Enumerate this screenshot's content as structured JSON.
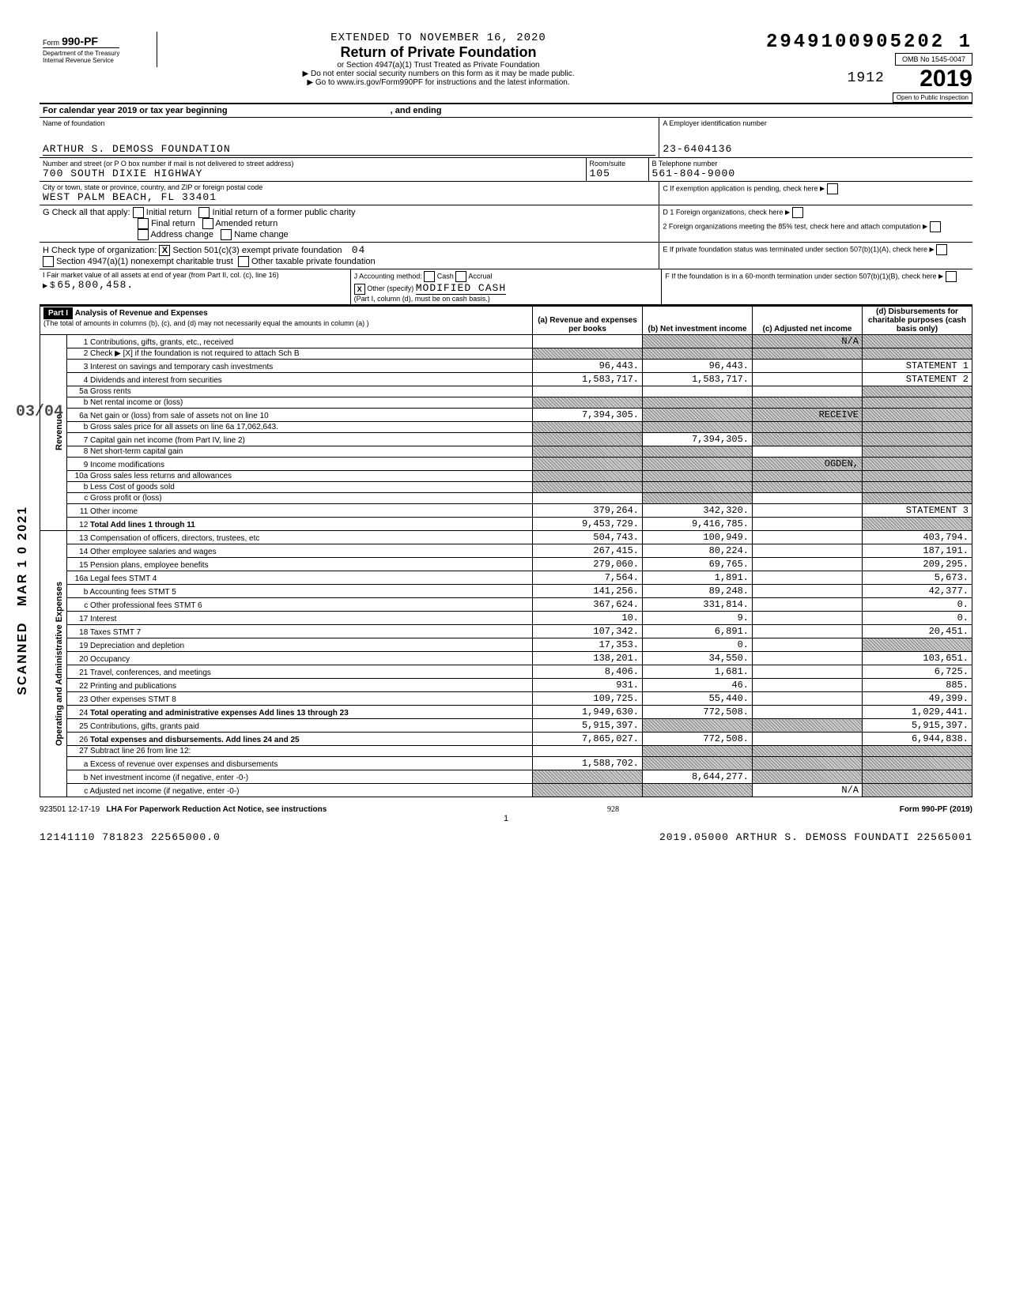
{
  "header": {
    "extended": "EXTENDED TO NOVEMBER 16, 2020",
    "title": "Return of Private Foundation",
    "sub1": "or Section 4947(a)(1) Trust Treated as Private Foundation",
    "sub2": "▶ Do not enter social security numbers on this form as it may be made public.",
    "sub3": "▶ Go to www.irs.gov/Form990PF for instructions and the latest information.",
    "form": "990-PF",
    "form_prefix": "Form",
    "dept": "Department of the Treasury\nInternal Revenue Service",
    "bignum": "2949100905202 1",
    "omb": "OMB No 1545-0047",
    "year": "2019",
    "year_small": "1912",
    "inspect": "Open to Public Inspection"
  },
  "calyear": "For calendar year 2019 or tax year beginning",
  "ending": ", and ending",
  "foundation": {
    "name_label": "Name of foundation",
    "name": "ARTHUR S. DEMOSS FOUNDATION",
    "ein_label": "A Employer identification number",
    "ein": "23-6404136",
    "street_label": "Number and street (or P O box number if mail is not delivered to street address)",
    "street": "700 SOUTH DIXIE HIGHWAY",
    "room_label": "Room/suite",
    "room": "105",
    "phone_label": "B Telephone number",
    "phone": "561-804-9000",
    "city_label": "City or town, state or province, country, and ZIP or foreign postal code",
    "city": "WEST PALM BEACH, FL  33401",
    "c_label": "C If exemption application is pending, check here"
  },
  "sectionG": {
    "label": "G Check all that apply:",
    "opts": [
      "Initial return",
      "Initial return of a former public charity",
      "Final return",
      "Amended return",
      "Address change",
      "Name change"
    ]
  },
  "sectionD": {
    "d1": "D 1 Foreign organizations, check here",
    "d2": "2 Foreign organizations meeting the 85% test, check here and attach computation"
  },
  "sectionH": {
    "label": "H Check type of organization:",
    "opt1": "Section 501(c)(3) exempt private foundation",
    "opt2": "Section 4947(a)(1) nonexempt charitable trust",
    "opt3": "Other taxable private foundation",
    "note": "04"
  },
  "sectionE": "E If private foundation status was terminated under section 507(b)(1)(A), check here",
  "sectionF": "F If the foundation is in a 60-month termination under section 507(b)(1)(B), check here",
  "sectionI": {
    "label": "I Fair market value of all assets at end of year (from Part II, col. (c), line 16)",
    "value": "65,800,458."
  },
  "sectionJ": {
    "label": "J Accounting method:",
    "cash": "Cash",
    "accrual": "Accrual",
    "other": "Other (specify)",
    "other_val": "MODIFIED CASH",
    "note": "(Part I, column (d), must be on cash basis.)"
  },
  "part1": {
    "label": "Part I",
    "title": "Analysis of Revenue and Expenses",
    "sub": "(The total of amounts in columns (b), (c), and (d) may not necessarily equal the amounts in column (a) )",
    "cols": {
      "a": "(a) Revenue and expenses per books",
      "b": "(b) Net investment income",
      "c": "(c) Adjusted net income",
      "d": "(d) Disbursements for charitable purposes (cash basis only)"
    }
  },
  "side_labels": {
    "revenue": "Revenue",
    "expenses": "Operating and Administrative Expenses"
  },
  "lines": [
    {
      "n": "1",
      "label": "Contributions, gifts, grants, etc., received",
      "a": "",
      "b": "",
      "c": "N/A",
      "d": "",
      "shade_b": true,
      "shade_c": true,
      "shade_d": true
    },
    {
      "n": "2",
      "label": "Check ▶ [X] if the foundation is not required to attach Sch B",
      "shade_a": true,
      "shade_b": true,
      "shade_c": true,
      "shade_d": true
    },
    {
      "n": "3",
      "label": "Interest on savings and temporary cash investments",
      "a": "96,443.",
      "b": "96,443.",
      "d": "STATEMENT 1"
    },
    {
      "n": "4",
      "label": "Dividends and interest from securities",
      "a": "1,583,717.",
      "b": "1,583,717.",
      "d": "STATEMENT 2"
    },
    {
      "n": "5a",
      "label": "Gross rents",
      "shade_d": true
    },
    {
      "n": "b",
      "label": "Net rental income or (loss)",
      "shade_a": true,
      "shade_b": true,
      "shade_c": true,
      "shade_d": true
    },
    {
      "n": "6a",
      "label": "Net gain or (loss) from sale of assets not on line 10",
      "a": "7,394,305.",
      "shade_b": true,
      "c": "RECEIVE",
      "shade_c": true,
      "shade_d": true
    },
    {
      "n": "b",
      "label": "Gross sales price for all assets on line 6a    17,062,643.",
      "shade_a": true,
      "shade_b": true,
      "shade_c": true,
      "shade_d": true
    },
    {
      "n": "7",
      "label": "Capital gain net income (from Part IV, line 2)",
      "shade_a": true,
      "b": "7,394,305.",
      "shade_c": true,
      "shade_d": true
    },
    {
      "n": "8",
      "label": "Net short-term capital gain",
      "shade_a": true,
      "shade_b": true,
      "shade_d": true
    },
    {
      "n": "9",
      "label": "Income modifications",
      "shade_a": true,
      "shade_b": true,
      "c": "OGDEN,",
      "shade_c": true,
      "shade_d": true
    },
    {
      "n": "10a",
      "label": "Gross sales less returns and allowances",
      "shade_a": true,
      "shade_b": true,
      "shade_c": true,
      "shade_d": true
    },
    {
      "n": "b",
      "label": "Less Cost of goods sold",
      "shade_a": true,
      "shade_b": true,
      "shade_c": true,
      "shade_d": true
    },
    {
      "n": "c",
      "label": "Gross profit or (loss)",
      "shade_b": true,
      "shade_d": true
    },
    {
      "n": "11",
      "label": "Other income",
      "a": "379,264.",
      "b": "342,320.",
      "d": "STATEMENT 3"
    },
    {
      "n": "12",
      "label": "Total Add lines 1 through 11",
      "a": "9,453,729.",
      "b": "9,416,785.",
      "shade_d": true,
      "bold": true
    },
    {
      "n": "13",
      "label": "Compensation of officers, directors, trustees, etc",
      "a": "504,743.",
      "b": "100,949.",
      "d": "403,794."
    },
    {
      "n": "14",
      "label": "Other employee salaries and wages",
      "a": "267,415.",
      "b": "80,224.",
      "d": "187,191."
    },
    {
      "n": "15",
      "label": "Pension plans, employee benefits",
      "a": "279,060.",
      "b": "69,765.",
      "d": "209,295."
    },
    {
      "n": "16a",
      "label": "Legal fees                    STMT 4",
      "a": "7,564.",
      "b": "1,891.",
      "d": "5,673."
    },
    {
      "n": "b",
      "label": "Accounting fees               STMT 5",
      "a": "141,256.",
      "b": "89,248.",
      "d": "42,377."
    },
    {
      "n": "c",
      "label": "Other professional fees       STMT 6",
      "a": "367,624.",
      "b": "331,814.",
      "d": "0."
    },
    {
      "n": "17",
      "label": "Interest",
      "a": "10.",
      "b": "9.",
      "d": "0."
    },
    {
      "n": "18",
      "label": "Taxes                         STMT 7",
      "a": "107,342.",
      "b": "6,891.",
      "d": "20,451."
    },
    {
      "n": "19",
      "label": "Depreciation and depletion",
      "a": "17,353.",
      "b": "0.",
      "shade_d": true
    },
    {
      "n": "20",
      "label": "Occupancy",
      "a": "138,201.",
      "b": "34,550.",
      "d": "103,651."
    },
    {
      "n": "21",
      "label": "Travel, conferences, and meetings",
      "a": "8,406.",
      "b": "1,681.",
      "d": "6,725."
    },
    {
      "n": "22",
      "label": "Printing and publications",
      "a": "931.",
      "b": "46.",
      "d": "885."
    },
    {
      "n": "23",
      "label": "Other expenses                STMT 8",
      "a": "109,725.",
      "b": "55,440.",
      "d": "49,399."
    },
    {
      "n": "24",
      "label": "Total operating and administrative expenses Add lines 13 through 23",
      "a": "1,949,630.",
      "b": "772,508.",
      "d": "1,029,441.",
      "bold": true
    },
    {
      "n": "25",
      "label": "Contributions, gifts, grants paid",
      "a": "5,915,397.",
      "shade_b": true,
      "shade_c": true,
      "d": "5,915,397."
    },
    {
      "n": "26",
      "label": "Total expenses and disbursements. Add lines 24 and 25",
      "a": "7,865,027.",
      "b": "772,508.",
      "d": "6,944,838.",
      "bold": true
    },
    {
      "n": "27",
      "label": "Subtract line 26 from line 12:",
      "shade_b": true,
      "shade_c": true,
      "shade_d": true
    },
    {
      "n": "a",
      "label": "Excess of revenue over expenses and disbursements",
      "a": "1,588,702.",
      "shade_b": true,
      "shade_c": true,
      "shade_d": true
    },
    {
      "n": "b",
      "label": "Net investment income (if negative, enter -0-)",
      "shade_a": true,
      "b": "8,644,277.",
      "shade_c": true,
      "shade_d": true
    },
    {
      "n": "c",
      "label": "Adjusted net income (if negative, enter -0-)",
      "shade_a": true,
      "shade_b": true,
      "c": "N/A",
      "shade_d": true
    }
  ],
  "side_stamps": {
    "scanned": "SCANNED",
    "date": "MAR 1 0 2021",
    "nums": "03/04"
  },
  "footer": {
    "left": "923501 12-17-19",
    "lha": "LHA For Paperwork Reduction Act Notice, see instructions",
    "page": "1",
    "form": "Form 990-PF (2019)",
    "bottom_left": "12141110 781823 22565000.0",
    "bottom_right": "2019.05000 ARTHUR S. DEMOSS FOUNDATI 22565001",
    "sig": "928"
  }
}
